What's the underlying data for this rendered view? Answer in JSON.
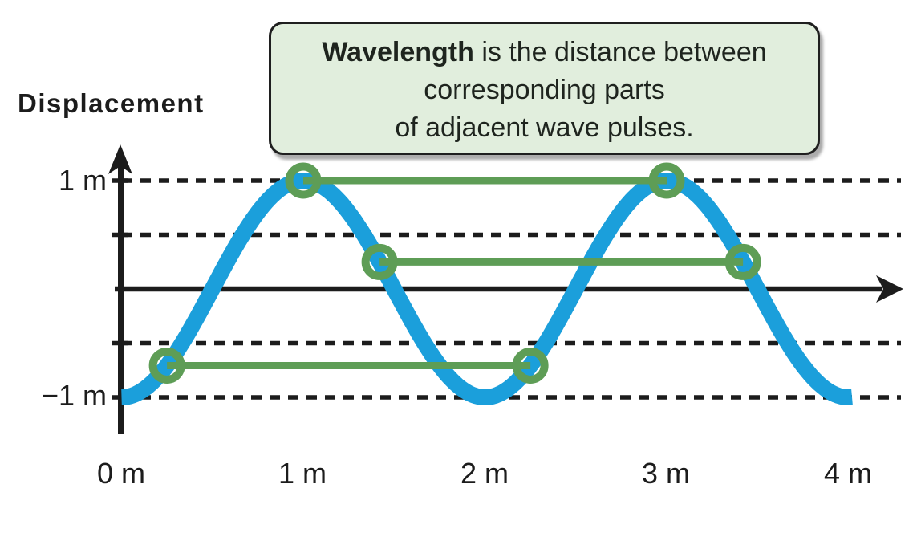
{
  "labels": {
    "y_axis_title": "Displacement",
    "y_tick_top": "1 m",
    "y_tick_bottom": "−1 m"
  },
  "axis": {
    "x_ticks": [
      "0 m",
      "1 m",
      "2 m",
      "3 m",
      "4 m"
    ]
  },
  "callout": {
    "line1_bold": "Wavelength",
    "line1_rest": " is the distance between",
    "line2": "corresponding parts",
    "line3": "of adjacent wave pulses."
  },
  "colors": {
    "wave_blue": "#1B9FDB",
    "marker_green": "#5E9D56",
    "axis_black": "#1C1C1C",
    "callout_bg": "#E1EEDD",
    "callout_border": "#1F1F1F",
    "text_dark": "#1E241E"
  },
  "chart_data": {
    "type": "line",
    "ylabel": "Displacement",
    "x_tick_labels": [
      "0 m",
      "1 m",
      "2 m",
      "3 m",
      "4 m"
    ],
    "y_tick_labels_shown": [
      "1 m",
      "−1 m"
    ],
    "x_range_m": [
      0,
      4.03
    ],
    "y_range_m": [
      -1,
      1
    ],
    "grid": "dashed horizontal",
    "legend": false,
    "wave": {
      "shape": "y = -cos(pi * x)",
      "amplitude_m": 1,
      "wavelength_m": 2,
      "x_start": 0,
      "x_end": 4.03
    },
    "dashed_gridlines_y": [
      1,
      0.5,
      -0.5,
      -1
    ],
    "wavelength_marker_pairs": [
      {
        "part": "crest",
        "x": [
          1,
          3
        ],
        "y": 1
      },
      {
        "part": "descending-midpoint",
        "x": [
          1.42,
          3.42
        ],
        "y": 0.25
      },
      {
        "part": "ascending-midpoint",
        "x": [
          0.25,
          2.25
        ],
        "y": -0.71
      }
    ],
    "annotation": "Wavelength is the distance between corresponding parts of adjacent wave pulses."
  }
}
